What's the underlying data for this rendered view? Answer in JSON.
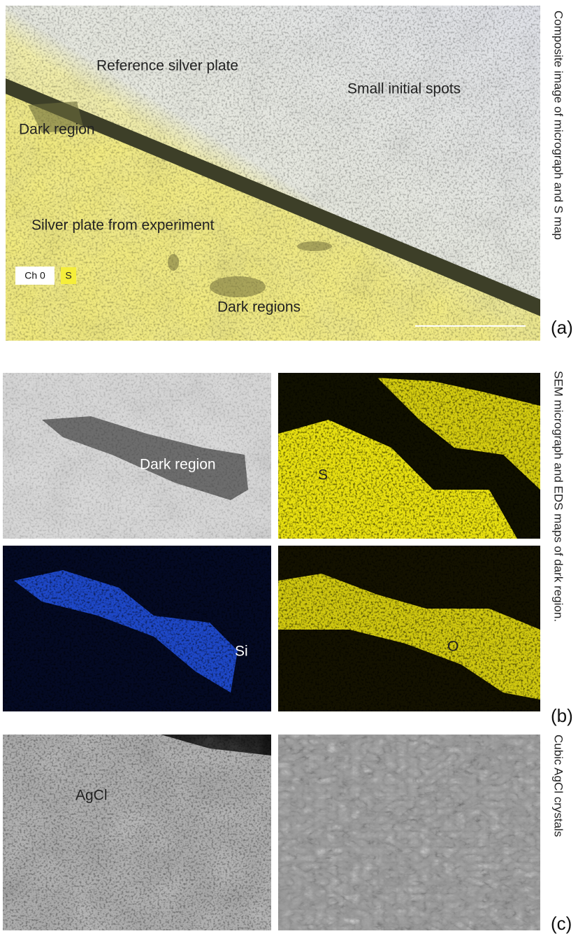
{
  "panels": [
    {
      "label": "(a)",
      "caption": "Composite image of micrograph and S map",
      "annotations": [
        "Reference silver plate",
        "Small initial spots",
        "Dark region",
        "Silver plate from experiment",
        "Dark regions"
      ],
      "legend": [
        "Ch 0",
        "S"
      ]
    },
    {
      "label": "(b)",
      "caption": "SEM micrograph  and EDS  maps of  dark region.",
      "annotations": [
        "Dark region",
        "S",
        "Si",
        "O"
      ]
    },
    {
      "label": "(c)",
      "caption": "Cubic AgCl crystals",
      "annotations": [
        "AgCl"
      ]
    }
  ]
}
